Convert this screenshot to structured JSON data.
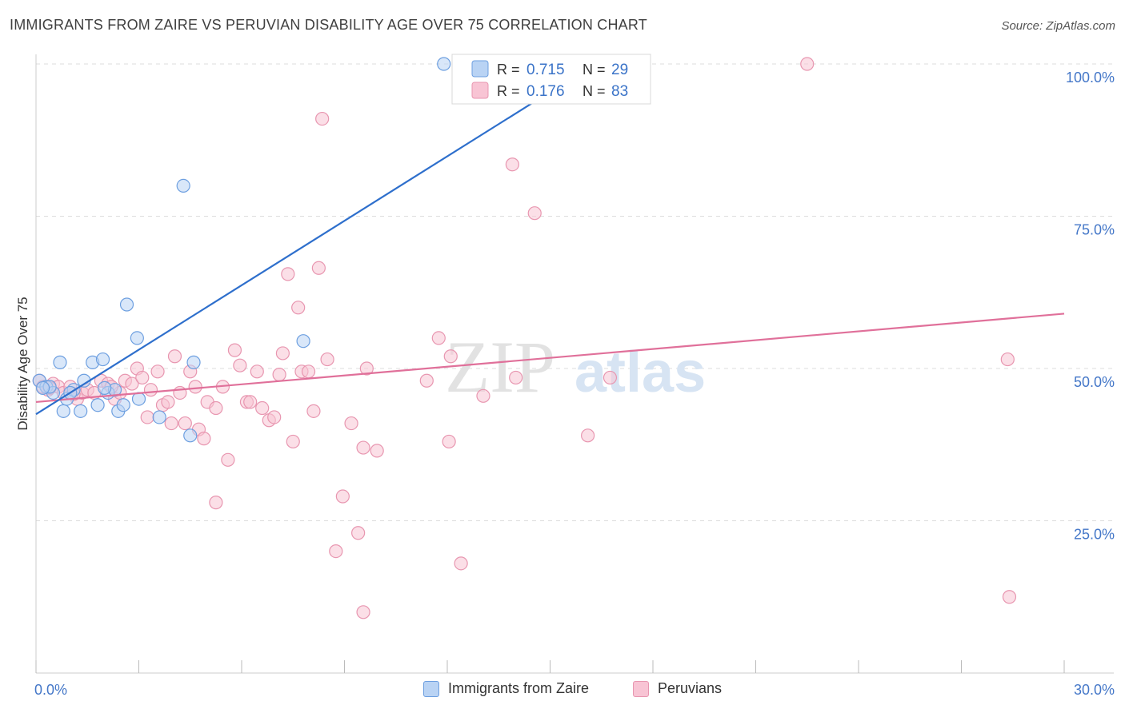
{
  "title": "IMMIGRANTS FROM ZAIRE VS PERUVIAN DISABILITY AGE OVER 75 CORRELATION CHART",
  "source": "Source: ZipAtlas.com",
  "watermark": {
    "zip": "ZIP",
    "atlas": "atlas"
  },
  "colors": {
    "series_a_fill": "#b9d3f4",
    "series_a_stroke": "#6d9fe0",
    "series_a_line": "#2e6fcc",
    "series_b_fill": "#f8c4d4",
    "series_b_stroke": "#e896b0",
    "series_b_line": "#e0709a",
    "tick_text": "#4477c8",
    "grid": "#dddddd"
  },
  "legend": {
    "rows": [
      {
        "r_label": "R =",
        "r_value": "0.715",
        "n_label": "N =",
        "n_value": "29"
      },
      {
        "r_label": "R =",
        "r_value": "0.176",
        "n_label": "N =",
        "n_value": "83"
      }
    ]
  },
  "chart_data": {
    "type": "scatter",
    "title": "IMMIGRANTS FROM ZAIRE VS PERUVIAN DISABILITY AGE OVER 75 CORRELATION CHART",
    "xlabel": "",
    "ylabel": "Disability Age Over 75",
    "xlim": [
      0,
      30
    ],
    "ylim": [
      0,
      102
    ],
    "x_tick_labels": [
      "0.0%",
      "30.0%"
    ],
    "y_ticks": [
      25,
      50,
      75,
      100
    ],
    "y_tick_labels": [
      "25.0%",
      "50.0%",
      "75.0%",
      "100.0%"
    ],
    "grid": "horizontal dashed",
    "legend_placement": "top-center and bottom",
    "series": [
      {
        "name": "Immigrants from Zaire",
        "r": 0.715,
        "n": 29,
        "trend": {
          "x": [
            0,
            16.3
          ],
          "y": [
            42.5,
            100
          ]
        },
        "points": [
          [
            0.1,
            48
          ],
          [
            0.3,
            47
          ],
          [
            0.5,
            46
          ],
          [
            0.7,
            51
          ],
          [
            0.8,
            43
          ],
          [
            0.9,
            45
          ],
          [
            1.1,
            46.5
          ],
          [
            1.3,
            43
          ],
          [
            1.4,
            48
          ],
          [
            1.65,
            51
          ],
          [
            1.8,
            44
          ],
          [
            1.95,
            51.5
          ],
          [
            2.1,
            46
          ],
          [
            2.3,
            46.5
          ],
          [
            2.4,
            43
          ],
          [
            2.55,
            44
          ],
          [
            2.65,
            60.5
          ],
          [
            2.95,
            55
          ],
          [
            3.0,
            45
          ],
          [
            3.6,
            42
          ],
          [
            4.3,
            80
          ],
          [
            4.5,
            39
          ],
          [
            4.6,
            51
          ],
          [
            7.8,
            54.5
          ],
          [
            11.9,
            100
          ],
          [
            0.4,
            47
          ],
          [
            0.2,
            46.8
          ],
          [
            1.0,
            46
          ],
          [
            2.0,
            46.8
          ]
        ]
      },
      {
        "name": "Peruvians",
        "r": 0.176,
        "n": 83,
        "trend": {
          "x": [
            0,
            30
          ],
          "y": [
            44.5,
            59
          ]
        },
        "points": [
          [
            0.1,
            48
          ],
          [
            0.2,
            47
          ],
          [
            0.35,
            46.5
          ],
          [
            0.5,
            47.5
          ],
          [
            0.65,
            47
          ],
          [
            0.8,
            46
          ],
          [
            1.0,
            47
          ],
          [
            1.2,
            45
          ],
          [
            1.35,
            46
          ],
          [
            1.5,
            46.5
          ],
          [
            1.7,
            46
          ],
          [
            1.9,
            48
          ],
          [
            2.1,
            47.5
          ],
          [
            2.3,
            45
          ],
          [
            2.45,
            46
          ],
          [
            2.6,
            48
          ],
          [
            2.8,
            47.5
          ],
          [
            2.95,
            50
          ],
          [
            3.1,
            48.5
          ],
          [
            3.25,
            42
          ],
          [
            3.35,
            46.5
          ],
          [
            3.55,
            49.5
          ],
          [
            3.7,
            44
          ],
          [
            3.85,
            44.5
          ],
          [
            3.95,
            41
          ],
          [
            4.05,
            52
          ],
          [
            4.2,
            46
          ],
          [
            4.35,
            41
          ],
          [
            4.5,
            49.5
          ],
          [
            4.65,
            47
          ],
          [
            4.75,
            40
          ],
          [
            4.9,
            38.5
          ],
          [
            5.0,
            44.5
          ],
          [
            5.25,
            43.5
          ],
          [
            5.45,
            47
          ],
          [
            5.6,
            35
          ],
          [
            5.25,
            28
          ],
          [
            5.8,
            53
          ],
          [
            5.95,
            50.5
          ],
          [
            6.15,
            44.5
          ],
          [
            6.25,
            44.5
          ],
          [
            6.45,
            49.5
          ],
          [
            6.6,
            43.5
          ],
          [
            6.8,
            41.5
          ],
          [
            6.95,
            42
          ],
          [
            7.1,
            49
          ],
          [
            7.2,
            52.5
          ],
          [
            7.35,
            65.5
          ],
          [
            7.5,
            38
          ],
          [
            7.65,
            60
          ],
          [
            7.75,
            49.5
          ],
          [
            7.95,
            49.5
          ],
          [
            8.1,
            43
          ],
          [
            8.25,
            66.5
          ],
          [
            8.35,
            91
          ],
          [
            8.5,
            51.5
          ],
          [
            8.95,
            29
          ],
          [
            9.2,
            41
          ],
          [
            9.4,
            23
          ],
          [
            9.55,
            37
          ],
          [
            9.55,
            10
          ],
          [
            9.65,
            50
          ],
          [
            9.95,
            36.5
          ],
          [
            8.75,
            20
          ],
          [
            11.4,
            48
          ],
          [
            11.75,
            55
          ],
          [
            12.05,
            38
          ],
          [
            12.1,
            52
          ],
          [
            12.4,
            18
          ],
          [
            13.05,
            45.5
          ],
          [
            13.2,
            100
          ],
          [
            13.9,
            83.5
          ],
          [
            14.0,
            48.5
          ],
          [
            14.55,
            75.5
          ],
          [
            16.1,
            39
          ],
          [
            16.75,
            48.5
          ],
          [
            16.4,
            100
          ],
          [
            22.5,
            100
          ],
          [
            28.35,
            51.5
          ],
          [
            28.4,
            12.5
          ],
          [
            0.4,
            46.8
          ],
          [
            1.1,
            45.8
          ],
          [
            2.2,
            47
          ]
        ]
      }
    ]
  },
  "bottom_legend": [
    "Immigrants from Zaire",
    "Peruvians"
  ]
}
